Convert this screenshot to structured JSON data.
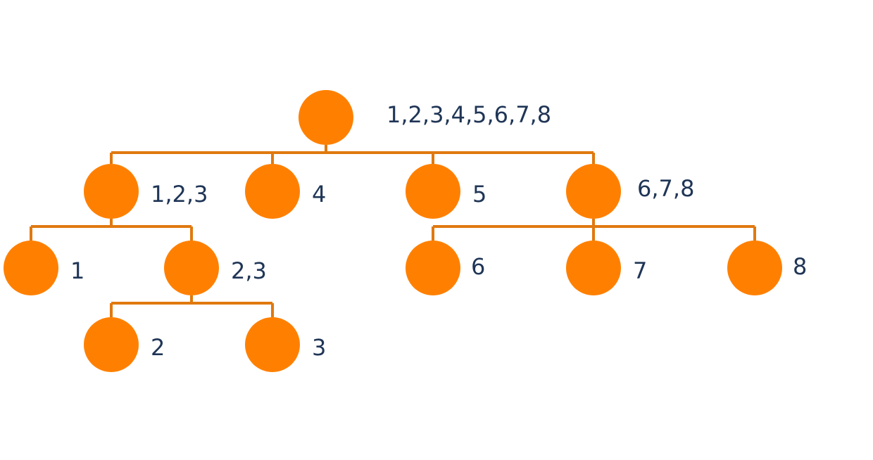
{
  "diagram": {
    "type": "tree",
    "node_color": "#ff8000",
    "edge_color": "#e0790f",
    "label_color": "#1f3556",
    "nodes": [
      {
        "id": "root",
        "label": "1,2,3,4,5,6,7,8"
      },
      {
        "id": "n123",
        "label": "1,2,3"
      },
      {
        "id": "n4",
        "label": "4"
      },
      {
        "id": "n5",
        "label": "5"
      },
      {
        "id": "n678",
        "label": "6,7,8"
      },
      {
        "id": "n1",
        "label": "1"
      },
      {
        "id": "n23",
        "label": "2,3"
      },
      {
        "id": "n6",
        "label": "6"
      },
      {
        "id": "n7",
        "label": "7"
      },
      {
        "id": "n8",
        "label": "8"
      },
      {
        "id": "n2",
        "label": "2"
      },
      {
        "id": "n3",
        "label": "3"
      }
    ],
    "edges": [
      {
        "from": "root",
        "to": [
          "n123",
          "n4",
          "n5",
          "n678"
        ]
      },
      {
        "from": "n123",
        "to": [
          "n1",
          "n23"
        ]
      },
      {
        "from": "n678",
        "to": [
          "n6",
          "n7",
          "n8"
        ]
      },
      {
        "from": "n23",
        "to": [
          "n2",
          "n3"
        ]
      }
    ]
  }
}
